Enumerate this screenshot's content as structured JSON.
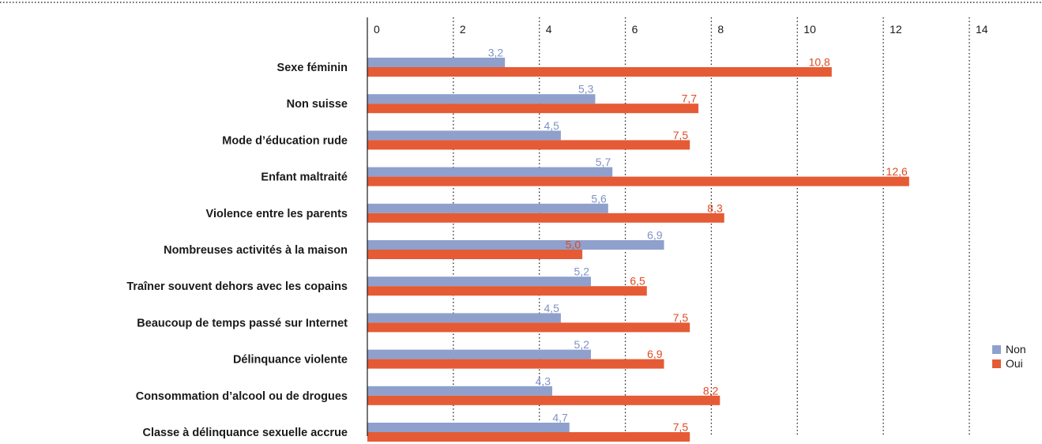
{
  "chart_data": {
    "type": "bar",
    "orientation": "horizontal",
    "title": "",
    "xlabel": "",
    "ylabel": "",
    "xlim": [
      0,
      14
    ],
    "ticks": [
      0,
      2,
      4,
      6,
      8,
      10,
      12,
      14
    ],
    "grid": "dotted vertical",
    "legend_position": "right",
    "categories": [
      "Sexe féminin",
      "Non suisse",
      "Mode d’éducation rude",
      "Enfant maltraité",
      "Violence entre les parents",
      "Nombreuses activités à la maison",
      "Traîner souvent dehors avec les copains",
      "Beaucoup de temps passé sur Internet",
      "Délinquance violente",
      "Consommation d’alcool ou de drogues",
      "Classe à délinquance sexuelle accrue"
    ],
    "series": [
      {
        "name": "Non",
        "color": "#8fa0cc",
        "values": [
          3.2,
          5.3,
          4.5,
          5.7,
          5.6,
          6.9,
          5.2,
          4.5,
          5.2,
          4.3,
          4.7
        ],
        "labels": [
          "3,2",
          "5,3",
          "4,5",
          "5,7",
          "5,6",
          "6,9",
          "5,2",
          "4,5",
          "5,2",
          "4,3",
          "4,7"
        ]
      },
      {
        "name": "Oui",
        "color": "#e55b35",
        "values": [
          10.8,
          7.7,
          7.5,
          12.6,
          8.3,
          5.0,
          6.5,
          7.5,
          6.9,
          8.2,
          7.5
        ],
        "labels": [
          "10,8",
          "7,7",
          "7,5",
          "12,6",
          "8,3",
          "5,0",
          "6,5",
          "7,5",
          "6,9",
          "8,2",
          "7,5"
        ]
      }
    ]
  }
}
